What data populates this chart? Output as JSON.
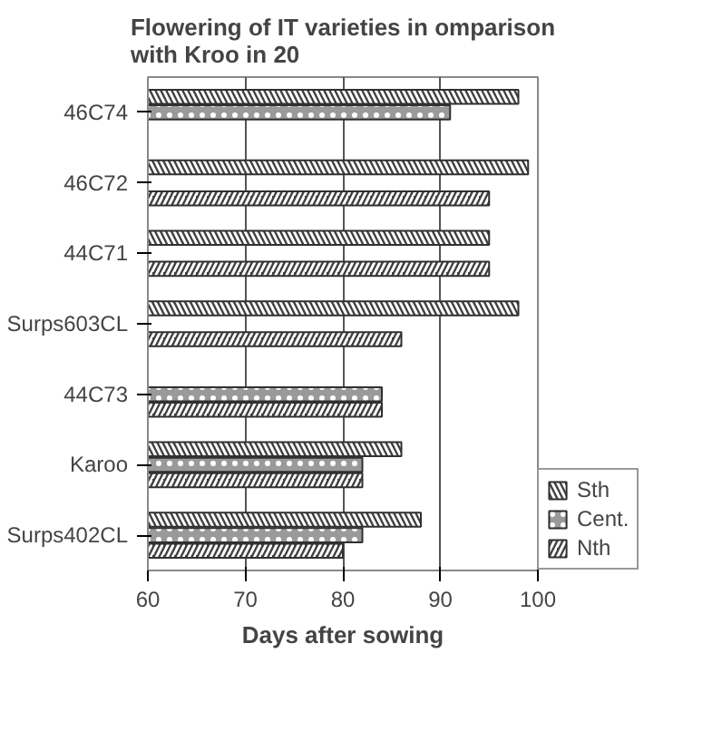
{
  "chart_data": {
    "type": "bar",
    "orientation": "horizontal",
    "title": "Flowering of IT varieties in omparison\nwith Kroo in 20",
    "xlabel": "Days after sowing",
    "categories": [
      "46C74",
      "46C72",
      "44C71",
      "Surps603CL",
      "44C73",
      "Karoo",
      "Surps402CL"
    ],
    "series": [
      {
        "name": "Sth",
        "color": "#404040",
        "values": [
          98,
          99,
          95,
          98,
          null,
          86,
          88
        ]
      },
      {
        "name": "Cent.",
        "color": "#9a9a9a",
        "values": [
          91,
          null,
          null,
          null,
          84,
          82,
          82
        ]
      },
      {
        "name": "Nth",
        "color": "#404040",
        "values": [
          null,
          95,
          95,
          86,
          84,
          82,
          80
        ]
      }
    ],
    "xlim": [
      60,
      100
    ],
    "xticks": [
      60,
      70,
      80,
      90,
      100
    ],
    "grid": "x",
    "legend": "bottom right"
  }
}
